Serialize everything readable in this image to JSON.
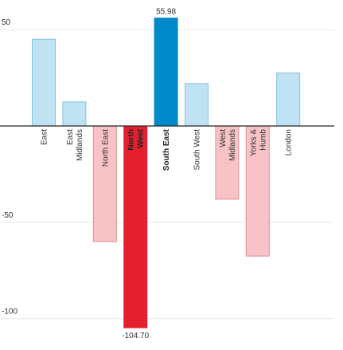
{
  "chart_data": {
    "type": "bar",
    "title": "",
    "xlabel": "",
    "ylabel": "",
    "ylim": [
      -110,
      60
    ],
    "yticks": [
      50,
      -50,
      -100
    ],
    "grid": true,
    "categories": [
      "East",
      "East Midlands",
      "North East",
      "North West",
      "South East",
      "South West",
      "West Midlands",
      "Yorks & Humb",
      "London"
    ],
    "category_label_lines": [
      [
        "East"
      ],
      [
        "East",
        "Midlands"
      ],
      [
        "North East"
      ],
      [
        "North",
        "West"
      ],
      [
        "South East"
      ],
      [
        "South West"
      ],
      [
        "West",
        "Midlands"
      ],
      [
        "Yorks &",
        "Humb"
      ],
      [
        "London"
      ]
    ],
    "values": [
      45,
      12.5,
      -60,
      -104.7,
      55.98,
      22,
      -38,
      -67.5,
      27.5
    ],
    "highlighted": [
      "North West",
      "South East"
    ],
    "data_labels": [
      {
        "category": "South East",
        "text": "55.98"
      },
      {
        "category": "North West",
        "text": "-104.70"
      }
    ],
    "colors": {
      "positive_fill": "#bfe3f3",
      "positive_stroke": "#85c3e0",
      "negative_fill": "#f7c3c6",
      "negative_stroke": "#e08c92",
      "highlight_positive": "#0088c8",
      "highlight_negative": "#e5202e",
      "grid": "#e8e8e8",
      "axis": "#222222"
    }
  }
}
